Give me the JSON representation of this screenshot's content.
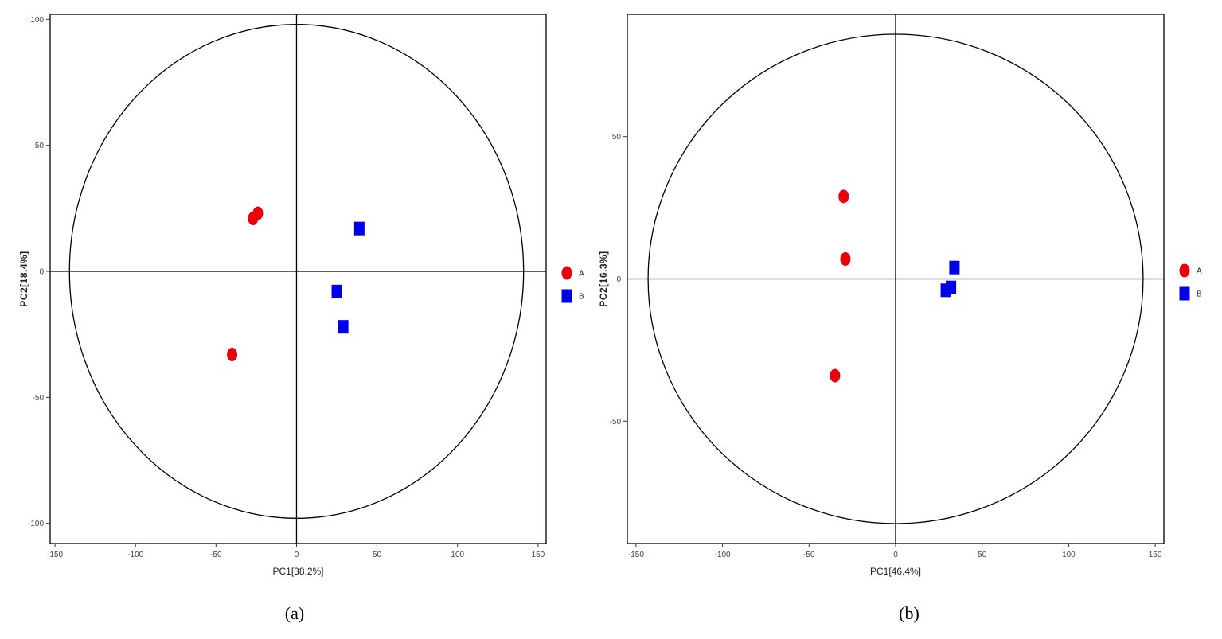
{
  "figure": {
    "captions": [
      "(a)",
      "(b)"
    ]
  },
  "chart_data": [
    {
      "type": "scatter",
      "xlabel": "PC1[38.2%]",
      "ylabel": "PC2[18.4%]",
      "xlim": [
        -153,
        155
      ],
      "ylim": [
        -108,
        102
      ],
      "xticks": [
        -150,
        -100,
        -50,
        0,
        50,
        100,
        150
      ],
      "yticks": [
        -100,
        -50,
        0,
        50,
        100
      ],
      "ellipse": {
        "rx": 141,
        "ry": 98
      },
      "legend_position": "right",
      "series": [
        {
          "name": "A",
          "shape": "circle",
          "color": "#e8000b",
          "points": [
            [
              -27,
              21
            ],
            [
              -24,
              23
            ],
            [
              -40,
              -33
            ]
          ]
        },
        {
          "name": "B",
          "shape": "square",
          "color": "#0000e6",
          "points": [
            [
              39,
              17
            ],
            [
              25,
              -8
            ],
            [
              29,
              -22
            ]
          ]
        }
      ]
    },
    {
      "type": "scatter",
      "xlabel": "PC1[46.4%]",
      "ylabel": "PC2[16.3%]",
      "xlim": [
        -155,
        155
      ],
      "ylim": [
        -93,
        93
      ],
      "xticks": [
        -150,
        -100,
        -50,
        0,
        50,
        100,
        150
      ],
      "yticks": [
        -50,
        0,
        50
      ],
      "ellipse": {
        "rx": 143,
        "ry": 86
      },
      "legend_position": "right",
      "series": [
        {
          "name": "A",
          "shape": "circle",
          "color": "#e8000b",
          "points": [
            [
              -30,
              29
            ],
            [
              -29,
              7
            ],
            [
              -35,
              -34
            ]
          ]
        },
        {
          "name": "B",
          "shape": "square",
          "color": "#0000e6",
          "points": [
            [
              34,
              4
            ],
            [
              32,
              -3
            ],
            [
              29,
              -4
            ]
          ]
        }
      ]
    }
  ]
}
